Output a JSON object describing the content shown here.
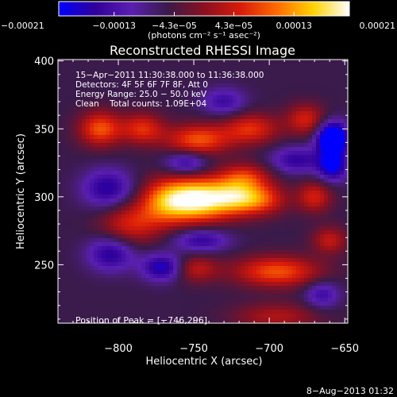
{
  "chart_data": {
    "type": "heatmap",
    "title": "Reconstructed RHESSI Image",
    "xlabel": "Heliocentric X (arcsec)",
    "ylabel": "Heliocentric Y (arcsec)",
    "xlim": [
      -840,
      -648
    ],
    "ylim": [
      207,
      401
    ],
    "x_ticks": [
      -800,
      -750,
      -700,
      -650
    ],
    "x_tick_labels": [
      "−800",
      "−750",
      "−700",
      "−650"
    ],
    "y_ticks": [
      250,
      300,
      350,
      400
    ],
    "y_tick_labels": [
      "250",
      "300",
      "350",
      "400"
    ],
    "colorbar": {
      "range": [
        -0.00021,
        0.00021
      ],
      "ticks": [
        -0.00021,
        -0.00013,
        -4.3e-05,
        4.3e-05,
        0.00013,
        0.00021
      ],
      "tick_labels": [
        "−0.00021",
        "−0.00013",
        "−4.3e−05",
        "4.3e−05",
        "0.00013",
        "0.00021"
      ],
      "unit_label": "(photons cm⁻² s⁻¹ asec⁻²)",
      "colors": [
        "#0000ff",
        "#30009a",
        "#5a1fb0",
        "#3a1a4a",
        "#8a1020",
        "#d81a0a",
        "#ff6a00",
        "#ffd200",
        "#ffffff"
      ]
    },
    "info_lines": [
      "15−Apr−2011 11:30:38.000 to 11:36:38.000",
      "Detectors: 4F 5F 6F 7F 8F, Att 0",
      "Energy Range: 25.0 − 50.0 keV",
      "Clean    Total counts: 1.09E+04"
    ],
    "peak_label": "Position of Peak = [−746,296]",
    "peak": {
      "x": -746,
      "y": 296
    },
    "blobs": [
      {
        "x": -748,
        "y": 298,
        "sx": 16,
        "sy": 11,
        "a": 1.0
      },
      {
        "x": -770,
        "y": 296,
        "sx": 12,
        "sy": 12,
        "a": 0.45
      },
      {
        "x": -722,
        "y": 300,
        "sx": 12,
        "sy": 9,
        "a": 0.55
      },
      {
        "x": -705,
        "y": 298,
        "sx": 12,
        "sy": 8,
        "a": 0.45
      },
      {
        "x": -792,
        "y": 280,
        "sx": 14,
        "sy": 11,
        "a": 0.4
      },
      {
        "x": -716,
        "y": 315,
        "sx": 12,
        "sy": 7,
        "a": 0.4
      },
      {
        "x": -747,
        "y": 342,
        "sx": 15,
        "sy": 8,
        "a": 0.55
      },
      {
        "x": -812,
        "y": 350,
        "sx": 10,
        "sy": 9,
        "a": 0.55
      },
      {
        "x": -784,
        "y": 350,
        "sx": 10,
        "sy": 8,
        "a": 0.45
      },
      {
        "x": -712,
        "y": 350,
        "sx": 13,
        "sy": 8,
        "a": 0.45
      },
      {
        "x": -676,
        "y": 357,
        "sx": 9,
        "sy": 8,
        "a": 0.4
      },
      {
        "x": -750,
        "y": 247,
        "sx": 11,
        "sy": 7,
        "a": 0.35
      },
      {
        "x": -695,
        "y": 245,
        "sx": 20,
        "sy": 8,
        "a": 0.55
      },
      {
        "x": -670,
        "y": 300,
        "sx": 8,
        "sy": 8,
        "a": 0.4
      },
      {
        "x": -660,
        "y": 268,
        "sx": 8,
        "sy": 7,
        "a": 0.35
      },
      {
        "x": -695,
        "y": 212,
        "sx": 20,
        "sy": 7,
        "a": 0.3
      },
      {
        "x": -807,
        "y": 306,
        "sx": 12,
        "sy": 10,
        "a": -0.45
      },
      {
        "x": -805,
        "y": 258,
        "sx": 11,
        "sy": 9,
        "a": -0.45
      },
      {
        "x": -770,
        "y": 248,
        "sx": 10,
        "sy": 7,
        "a": -0.55
      },
      {
        "x": -745,
        "y": 268,
        "sx": 13,
        "sy": 6,
        "a": -0.4
      },
      {
        "x": -755,
        "y": 325,
        "sx": 10,
        "sy": 6,
        "a": -0.4
      },
      {
        "x": -682,
        "y": 327,
        "sx": 12,
        "sy": 7,
        "a": -0.4
      },
      {
        "x": -658,
        "y": 343,
        "sx": 7,
        "sy": 8,
        "a": -1.0
      },
      {
        "x": -658,
        "y": 323,
        "sx": 7,
        "sy": 8,
        "a": -0.6
      },
      {
        "x": -730,
        "y": 370,
        "sx": 10,
        "sy": 7,
        "a": -0.35
      },
      {
        "x": -665,
        "y": 228,
        "sx": 8,
        "sy": 7,
        "a": -0.35
      }
    ]
  },
  "timestamp": "8−Aug−2013 01:32"
}
